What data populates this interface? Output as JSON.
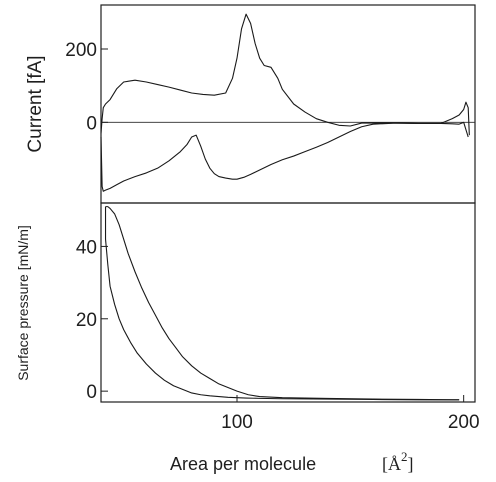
{
  "chart_data": [
    {
      "type": "line",
      "panel": "top",
      "ylabel": "Current [fA]",
      "xlim": [
        40,
        205
      ],
      "ylim": [
        -220,
        320
      ],
      "yticks": [
        0,
        200
      ],
      "zero_line": true,
      "series": [
        {
          "x": [
            40,
            40.5,
            41,
            42,
            44,
            47,
            50,
            55,
            60,
            65,
            70,
            75,
            80,
            85,
            90,
            95,
            98,
            100,
            102,
            104,
            106,
            108,
            110,
            112,
            115,
            118,
            120,
            125,
            130,
            135,
            140,
            145,
            150,
            155,
            160,
            170,
            180,
            190,
            195,
            198,
            200,
            201,
            202,
            202.5
          ],
          "y": [
            -30,
            10,
            40,
            50,
            62,
            92,
            110,
            115,
            110,
            103,
            96,
            88,
            80,
            76,
            74,
            80,
            120,
            175,
            255,
            295,
            270,
            215,
            175,
            155,
            150,
            120,
            90,
            50,
            28,
            10,
            0,
            -8,
            -10,
            -2,
            -2,
            -2,
            -3,
            -3,
            10,
            20,
            35,
            55,
            40,
            -35
          ]
        },
        {
          "x": [
            40,
            40.5,
            41,
            42,
            44,
            47,
            50,
            55,
            60,
            65,
            70,
            75,
            78,
            80,
            82,
            84,
            86,
            88,
            90,
            92,
            95,
            98,
            100,
            103,
            106,
            110,
            115,
            120,
            125,
            130,
            135,
            140,
            145,
            150,
            155,
            160,
            170,
            180,
            190,
            195,
            198,
            200,
            202
          ],
          "y": [
            -40,
            -175,
            -188,
            -185,
            -180,
            -170,
            -160,
            -148,
            -138,
            -125,
            -105,
            -80,
            -60,
            -40,
            -35,
            -65,
            -100,
            -125,
            -140,
            -148,
            -152,
            -155,
            -155,
            -150,
            -142,
            -130,
            -115,
            -102,
            -92,
            -80,
            -68,
            -55,
            -40,
            -25,
            -12,
            -5,
            -2,
            -3,
            -3,
            -4,
            -5,
            0,
            -40
          ]
        }
      ]
    },
    {
      "type": "line",
      "panel": "bottom",
      "ylabel": "Surface pressure [mN/m]",
      "xlabel": "Area per molecule",
      "xlabel_unit": "[Å",
      "xlabel_unit_sup": "2",
      "xlabel_unit_close": "]",
      "xlim": [
        40,
        205
      ],
      "ylim": [
        -3,
        52
      ],
      "xticks": [
        100,
        200
      ],
      "yticks": [
        0,
        20,
        40
      ],
      "series": [
        {
          "x": [
            42,
            43,
            44,
            46,
            48,
            50,
            52,
            55,
            58,
            61,
            64,
            67,
            70,
            73,
            76,
            80,
            84,
            88,
            92,
            96,
            100,
            105,
            110,
            120,
            140,
            160,
            180,
            195,
            198
          ],
          "y": [
            51,
            51,
            50.5,
            49,
            46,
            42,
            38,
            33,
            28.5,
            24.5,
            21,
            17.5,
            14.5,
            12,
            9.5,
            7,
            5,
            3.5,
            2,
            1,
            0,
            -1,
            -1.5,
            -1.8,
            -2,
            -2.2,
            -2.3,
            -2.4,
            -2.4
          ]
        },
        {
          "x": [
            42,
            42,
            43,
            44,
            46,
            48,
            50,
            53,
            56,
            60,
            64,
            68,
            72,
            76,
            80,
            84,
            88,
            92,
            96,
            100,
            104,
            110,
            120,
            140,
            160,
            180,
            198
          ],
          "y": [
            51,
            42,
            35,
            29,
            24,
            20,
            17,
            13.5,
            10.5,
            7.5,
            5,
            3,
            1.5,
            0.5,
            -0.5,
            -1,
            -1.3,
            -1.5,
            -1.7,
            -1.8,
            -1.9,
            -2,
            -2.1,
            -2.2,
            -2.3,
            -2.4,
            -2.4
          ]
        }
      ]
    }
  ]
}
